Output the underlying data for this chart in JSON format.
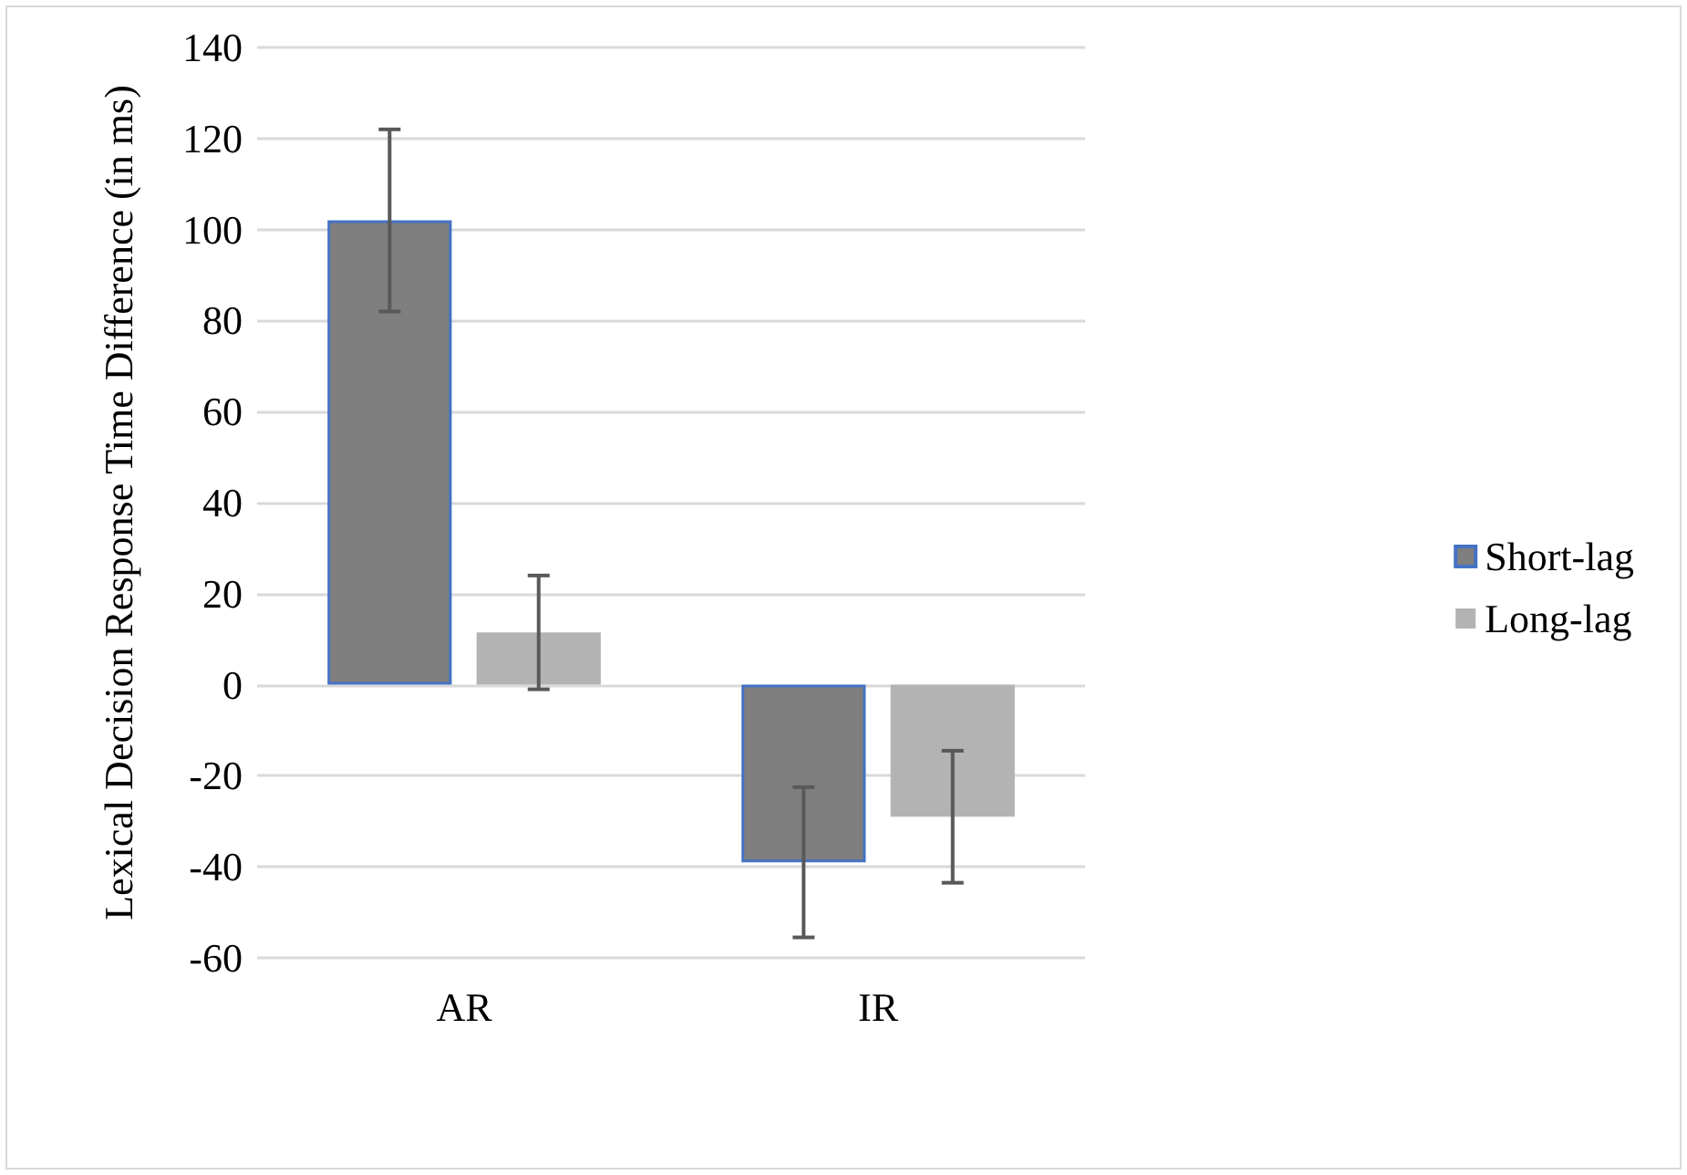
{
  "chart_data": {
    "type": "bar",
    "ylabel": "Lexical Decision Response Time Difference (in ms)",
    "categories": [
      "AR",
      "IR"
    ],
    "series": [
      {
        "name": "Short-lag",
        "color": "#7f7f7f",
        "values": [
          102,
          -39
        ],
        "errors": [
          20,
          16.5
        ]
      },
      {
        "name": "Long-lag",
        "color": "#b3b3b3",
        "values": [
          11.5,
          -29
        ],
        "errors": [
          [
            -1,
            24
          ],
          [
            -43.5,
            -14.5
          ]
        ]
      }
    ],
    "ylim": [
      -60,
      140
    ],
    "yticks": [
      -60,
      -40,
      -20,
      0,
      20,
      40,
      60,
      80,
      100,
      120,
      140
    ],
    "grid": "y",
    "legend": "right"
  }
}
